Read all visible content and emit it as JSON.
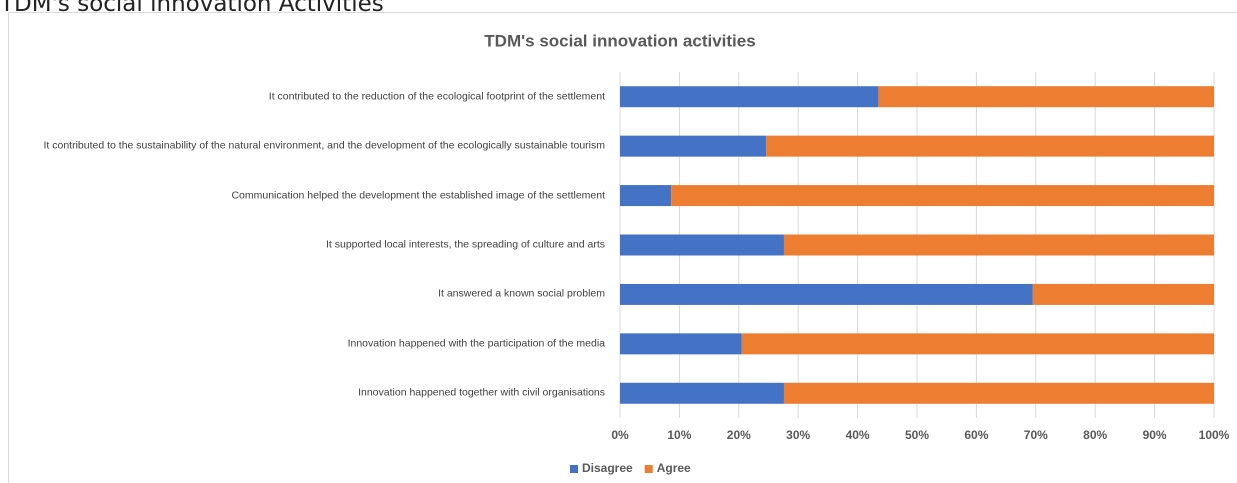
{
  "heading": "TDM's social innovation Activities",
  "chart_data": {
    "type": "stacked-barh",
    "title": "TDM's social innovation activities",
    "categories": [
      "It contributed to the reduction of the ecological footprint of the settlement",
      "It contributed to the sustainability of the natural environment, and the development of the ecologically sustainable tourism",
      "Communication helped the development the established image of the settlement",
      "It supported local interests, the spreading of culture and arts",
      "It answered a known social problem",
      "Innovation happened with the participation of the media",
      "Innovation happened together with civil organisations"
    ],
    "series": [
      {
        "name": "Disagree",
        "color": "#4472c4",
        "values": [
          43.5,
          24.6,
          8.6,
          27.6,
          69.5,
          20.5,
          27.6
        ]
      },
      {
        "name": "Agree",
        "color": "#ed7d31",
        "values": [
          56.5,
          75.4,
          91.4,
          72.4,
          30.5,
          79.5,
          72.4
        ]
      }
    ],
    "xlim": [
      0,
      100
    ],
    "xticks": [
      {
        "value": 0,
        "label": "0%"
      },
      {
        "value": 10,
        "label": "10%"
      },
      {
        "value": 20,
        "label": "20%"
      },
      {
        "value": 30,
        "label": "30%"
      },
      {
        "value": 40,
        "label": "40%"
      },
      {
        "value": 50,
        "label": "50%"
      },
      {
        "value": 60,
        "label": "60%"
      },
      {
        "value": 70,
        "label": "70%"
      },
      {
        "value": 80,
        "label": "80%"
      },
      {
        "value": 90,
        "label": "90%"
      },
      {
        "value": 100,
        "label": "100%"
      }
    ],
    "grid": true,
    "legend": "bottom"
  }
}
